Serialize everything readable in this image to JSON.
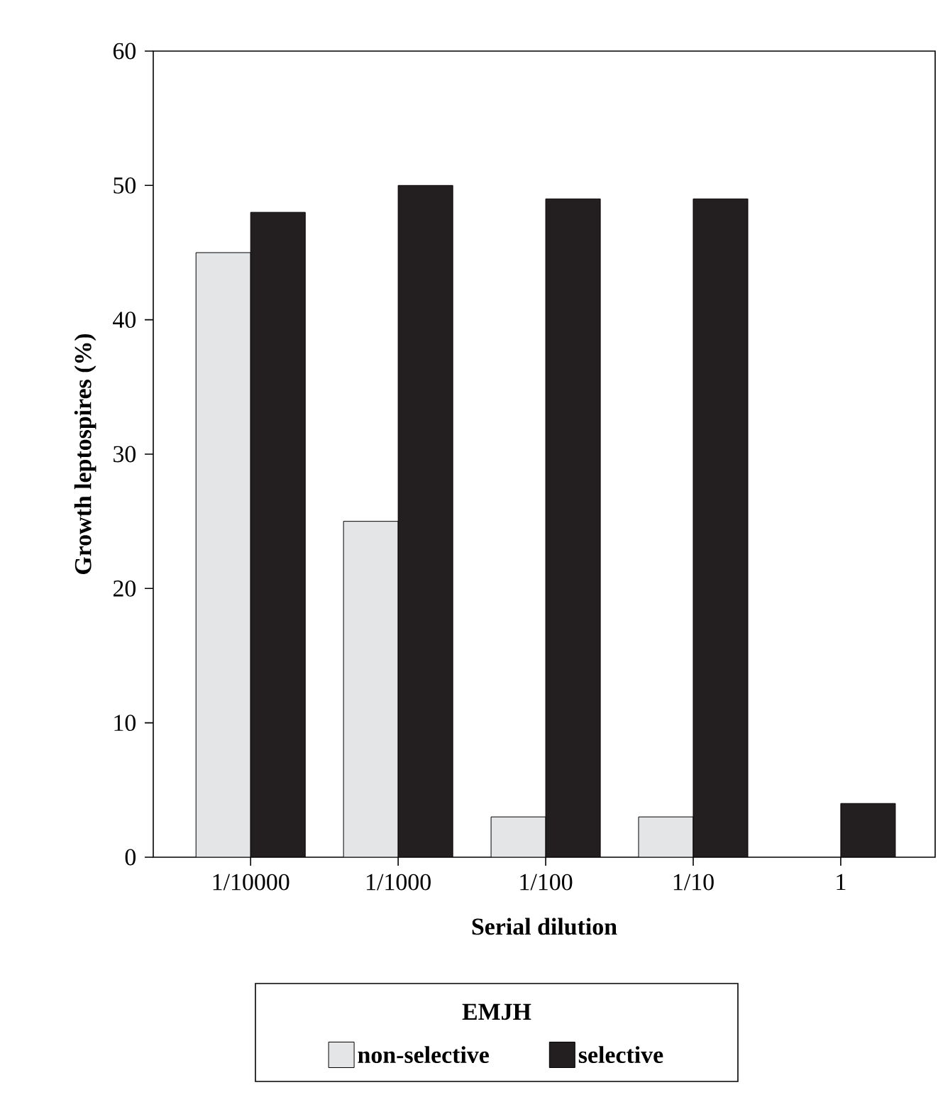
{
  "chart_data": {
    "type": "bar",
    "xlabel": "Serial dilution",
    "ylabel": "Growth leptospires (%)",
    "legend_title": "EMJH",
    "categories": [
      "1/10000",
      "1/1000",
      "1/100",
      "1/10",
      "1"
    ],
    "series": [
      {
        "name": "non-selective",
        "color": "#e4e5e7",
        "values": [
          45,
          25,
          3,
          3,
          0
        ]
      },
      {
        "name": "selective",
        "color": "#231f20",
        "values": [
          48,
          50,
          49,
          49,
          4
        ]
      }
    ],
    "ylim": [
      0,
      60
    ],
    "yticks": [
      0,
      10,
      20,
      30,
      40,
      50,
      60
    ],
    "legend": "bottom",
    "grid": false
  }
}
